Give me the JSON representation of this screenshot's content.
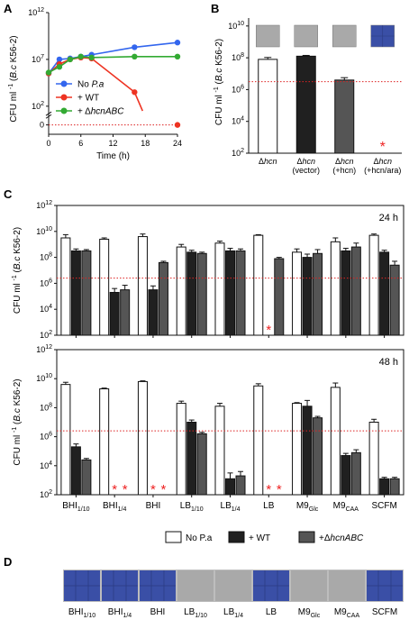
{
  "panels": {
    "a": "A",
    "b": "B",
    "c": "C",
    "d": "D"
  },
  "colors": {
    "no_pa": "#3366ee",
    "wt": "#ee3322",
    "hcn": "#33aa33",
    "bar_white": "#ffffff",
    "bar_black": "#202020",
    "bar_gray": "#555555",
    "threshold": "#dd2222",
    "asterisk": "#ee2222",
    "tile_blue": "#3a4fa6",
    "tile_gray": "#a9a9a9"
  },
  "y_label": {
    "main": "CFU ml",
    "sup": "-1",
    "italic": "B.c",
    "strain": "K56-2"
  },
  "chart_data": [
    {
      "id": "A",
      "type": "line",
      "xlabel": "Time (h)",
      "xticks": [
        0,
        6,
        12,
        18,
        24
      ],
      "xlim": [
        0,
        24
      ],
      "ytick_labels": [
        "10^2",
        "10^7",
        "10^12"
      ],
      "extra_tick": "0",
      "ylim": [
        -1,
        12
      ],
      "threshold": 0,
      "series": [
        {
          "name": "No P.a",
          "name_parts": [
            "No ",
            "P.a"
          ],
          "color_key": "no_pa",
          "x": [
            0,
            2,
            4,
            6,
            8,
            16,
            24
          ],
          "y": [
            5.5,
            7.0,
            7.1,
            7.3,
            7.5,
            8.3,
            8.8
          ]
        },
        {
          "name": "+ WT",
          "name_parts": [
            "+ WT",
            ""
          ],
          "color_key": "wt",
          "x": [
            0,
            2,
            4,
            6,
            8,
            16,
            24
          ],
          "y": [
            5.5,
            6.5,
            7.0,
            7.2,
            7.1,
            3.5,
            0
          ],
          "drop_to": [
            17.5,
            1.5
          ]
        },
        {
          "name": "+ ΔhcnABC",
          "name_parts": [
            "+ Δ",
            "hcnABC"
          ],
          "color_key": "hcn",
          "x": [
            0,
            2,
            4,
            6,
            8,
            16,
            24
          ],
          "y": [
            5.6,
            6.2,
            7.0,
            7.3,
            7.2,
            7.3,
            7.3
          ]
        }
      ]
    },
    {
      "id": "B",
      "type": "bar",
      "categories": [
        "Δhcn",
        "Δhcn (vector)",
        "Δhcn (+hcn)",
        "Δhcn (+hcn/ara)"
      ],
      "category_lines": [
        [
          "Δ",
          "hcn",
          ""
        ],
        [
          "Δ",
          "hcn",
          "(vector)"
        ],
        [
          "Δ",
          "hcn",
          "(+hcn)"
        ],
        [
          "Δ",
          "hcn",
          "(+hcn/ara)"
        ]
      ],
      "values": [
        7.9,
        8.1,
        6.6,
        null
      ],
      "errors": [
        0.12,
        0.05,
        0.15,
        0
      ],
      "bar_colors": [
        "bar_white",
        "bar_black",
        "bar_gray",
        "bar_white"
      ],
      "ytick_labels": [
        "10^2",
        "10^4",
        "10^6",
        "10^8",
        "10^10"
      ],
      "ylim": [
        2,
        10.5
      ],
      "threshold": 6.5,
      "asterisks": [
        3
      ],
      "tiles": [
        "tile_gray",
        "tile_gray",
        "tile_gray",
        "tile_blue"
      ]
    },
    {
      "id": "C-24h",
      "type": "bar",
      "time_label": "24 h",
      "ylim": [
        2,
        12
      ],
      "ytick_labels": [
        "10^2",
        "10^4",
        "10^6",
        "10^8",
        "10^10",
        "10^12"
      ],
      "threshold": 6.4,
      "categories": [
        "BHI1/10",
        "BHI1/4",
        "BHI",
        "LB1/10",
        "LB1/4",
        "LB",
        "M9Glc",
        "M9CAA",
        "SCFM"
      ],
      "series": [
        {
          "name": "No P.a",
          "values": [
            9.5,
            9.4,
            9.6,
            8.8,
            9.1,
            9.7,
            8.4,
            9.2,
            9.7
          ],
          "errors": [
            0.25,
            0.1,
            0.2,
            0.2,
            0.15,
            0.05,
            0.25,
            0.3,
            0.1
          ]
        },
        {
          "name": "+ WT",
          "values": [
            8.5,
            5.3,
            5.5,
            8.4,
            8.5,
            null,
            8.0,
            8.5,
            8.4
          ],
          "errors": [
            0.15,
            0.3,
            0.3,
            0.15,
            0.2,
            0,
            0.25,
            0.2,
            0.15
          ]
        },
        {
          "name": "+ΔhcnABC",
          "values": [
            8.5,
            5.5,
            7.6,
            8.3,
            8.5,
            7.9,
            8.3,
            8.8,
            7.4
          ],
          "errors": [
            0.1,
            0.35,
            0.1,
            0.1,
            0.15,
            0.1,
            0.3,
            0.3,
            0.3
          ]
        }
      ],
      "asterisks": [
        [
          5,
          1
        ]
      ]
    },
    {
      "id": "C-48h",
      "type": "bar",
      "time_label": "48 h",
      "ylim": [
        2,
        12
      ],
      "ytick_labels": [
        "10^2",
        "10^4",
        "10^6",
        "10^8",
        "10^10",
        "10^12"
      ],
      "threshold": 6.4,
      "categories": [
        "BHI1/10",
        "BHI1/4",
        "BHI",
        "LB1/10",
        "LB1/4",
        "LB",
        "M9Glc",
        "M9CAA",
        "SCFM"
      ],
      "category_lines": [
        [
          "BHI",
          "1/10"
        ],
        [
          "BHI",
          "1/4"
        ],
        [
          "BHI",
          ""
        ],
        [
          "LB",
          "1/10"
        ],
        [
          "LB",
          "1/4"
        ],
        [
          "LB",
          ""
        ],
        [
          "M9",
          "Glc"
        ],
        [
          "M9",
          "CAA"
        ],
        [
          "SCFM",
          ""
        ]
      ],
      "series": [
        {
          "name": "No P.a",
          "values": [
            9.6,
            9.3,
            9.8,
            8.3,
            8.1,
            9.5,
            8.3,
            9.4,
            7.0
          ],
          "errors": [
            0.15,
            0.05,
            0.05,
            0.15,
            0.2,
            0.15,
            0.05,
            0.3,
            0.2
          ]
        },
        {
          "name": "+ WT",
          "values": [
            5.3,
            null,
            null,
            7.0,
            3.1,
            null,
            8.1,
            4.7,
            3.1
          ],
          "errors": [
            0.2,
            0,
            0,
            0.15,
            0.4,
            0,
            0.4,
            0.15,
            0.1
          ]
        },
        {
          "name": "+ΔhcnABC",
          "values": [
            4.4,
            null,
            null,
            6.2,
            3.3,
            null,
            7.3,
            4.9,
            3.1
          ],
          "errors": [
            0.1,
            0,
            0,
            0.1,
            0.3,
            0,
            0.1,
            0.2,
            0.1
          ]
        }
      ],
      "asterisks": [
        [
          1,
          1
        ],
        [
          1,
          2
        ],
        [
          2,
          1
        ],
        [
          2,
          2
        ],
        [
          5,
          1
        ],
        [
          5,
          2
        ]
      ]
    }
  ],
  "legend": {
    "items": [
      {
        "label": "No P.a",
        "parts": [
          "No P.a",
          ""
        ],
        "color_key": "bar_white"
      },
      {
        "label": "+ WT",
        "parts": [
          "+ WT",
          ""
        ],
        "color_key": "bar_black"
      },
      {
        "label": "+ΔhcnABC",
        "parts": [
          "+Δ",
          "hcnABC"
        ],
        "color_key": "bar_gray"
      }
    ]
  },
  "panel_d": {
    "categories": [
      "BHI1/10",
      "BHI1/4",
      "BHI",
      "LB1/10",
      "LB1/4",
      "LB",
      "M9Glc",
      "M9CAA",
      "SCFM"
    ],
    "category_lines": [
      [
        "BHI",
        "1/10"
      ],
      [
        "BHI",
        "1/4"
      ],
      [
        "BHI",
        ""
      ],
      [
        "LB",
        "1/10"
      ],
      [
        "LB",
        "1/4"
      ],
      [
        "LB",
        ""
      ],
      [
        "M9",
        "Glc"
      ],
      [
        "M9",
        "CAA"
      ],
      [
        "SCFM",
        ""
      ]
    ],
    "tiles": [
      "tile_blue",
      "tile_blue",
      "tile_blue",
      "tile_gray",
      "tile_gray",
      "tile_blue",
      "tile_gray",
      "tile_gray",
      "tile_blue"
    ]
  }
}
